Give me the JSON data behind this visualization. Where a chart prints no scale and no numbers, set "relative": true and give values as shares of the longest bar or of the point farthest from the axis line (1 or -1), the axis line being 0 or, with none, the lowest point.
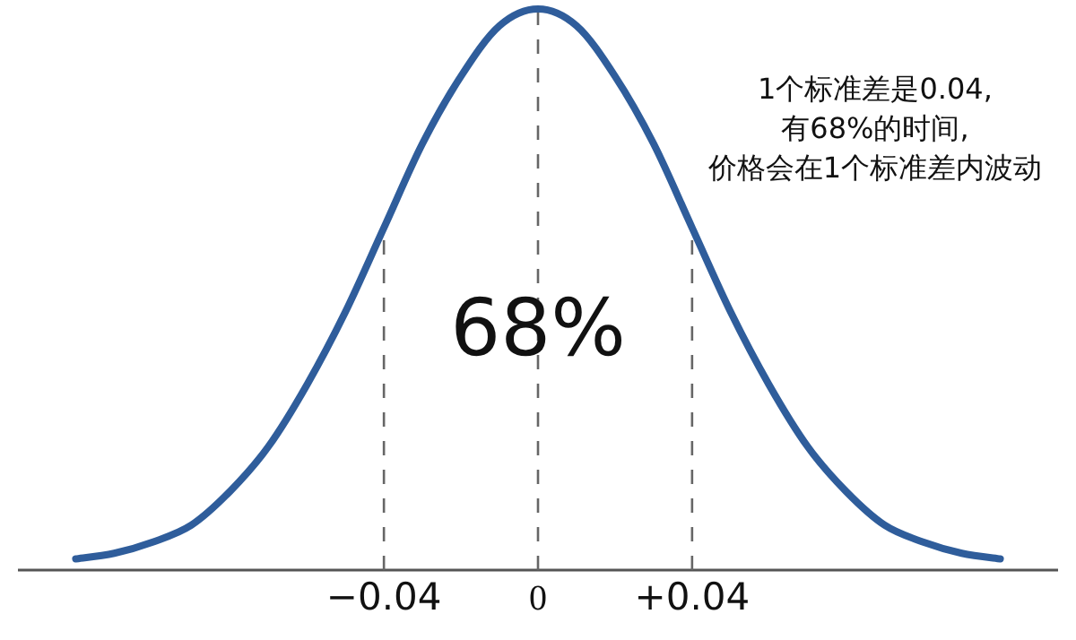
{
  "chart_data": {
    "type": "line",
    "relative": true,
    "x": [
      -0.12,
      -0.11,
      -0.1,
      -0.09,
      -0.08,
      -0.07,
      -0.06,
      -0.05,
      -0.04,
      -0.03,
      -0.02,
      -0.01,
      0,
      0.01,
      0.02,
      0.03,
      0.04,
      0.05,
      0.06,
      0.07,
      0.08,
      0.09,
      0.1,
      0.11,
      0.12
    ],
    "series": [
      {
        "color": "#2f5d9b",
        "values": [
          0.02,
          0.03,
          0.05,
          0.08,
          0.14,
          0.22,
          0.33,
          0.46,
          0.61,
          0.76,
          0.88,
          0.97,
          1,
          0.97,
          0.88,
          0.76,
          0.61,
          0.46,
          0.33,
          0.22,
          0.14,
          0.08,
          0.05,
          0.03,
          0.02
        ]
      }
    ],
    "xlim": [
      -0.135,
      0.135
    ],
    "xticks": [
      {
        "value": -0.04,
        "label": "−0.04"
      },
      {
        "value": 0,
        "label": "0"
      },
      {
        "value": 0.04,
        "label": "+0.04"
      }
    ],
    "ref_lines": [
      {
        "axis": "x",
        "value": -0.04,
        "line_style": "dashed",
        "color": "#666666"
      },
      {
        "axis": "x",
        "value": 0,
        "line_style": "dashed",
        "color": "#666666"
      },
      {
        "axis": "x",
        "value": 0.04,
        "line_style": "dashed",
        "color": "#666666"
      }
    ],
    "grid": false,
    "marker": "none",
    "line_style": "solid",
    "annotations": [
      "68%",
      "1个标准差是0.04,\n有68%的时间,\n价格会在1个标准差内波动"
    ]
  }
}
